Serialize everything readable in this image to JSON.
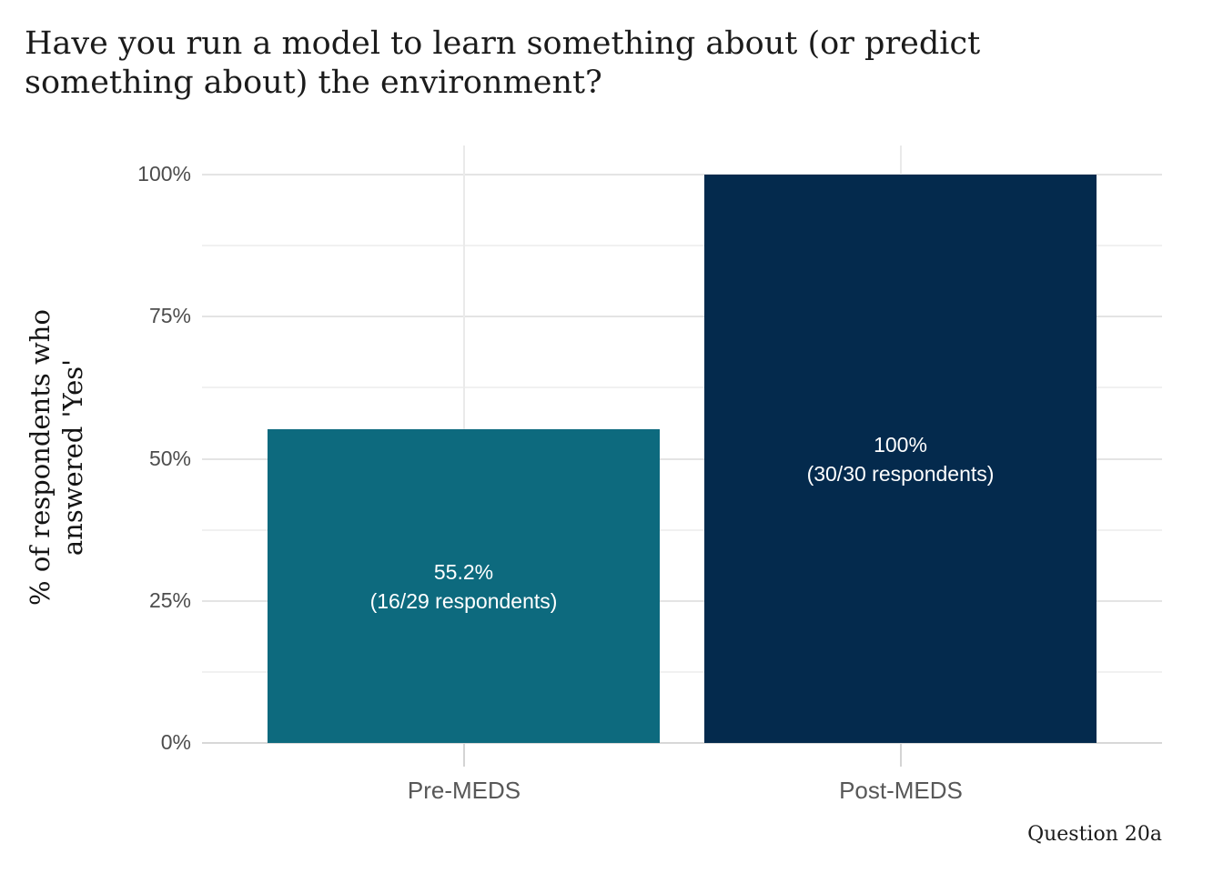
{
  "chart_data": {
    "type": "bar",
    "title": "Have you run a model to learn something about (or predict something about) the environment?",
    "title_lines": [
      "Have you run a model to learn something about (or predict",
      "something about) the environment?"
    ],
    "ylabel": "% of respondents who answered 'Yes'",
    "ylabel_lines": [
      "% of respondents who",
      "answered 'Yes'"
    ],
    "xlabel": "",
    "categories": [
      "Pre-MEDS",
      "Post-MEDS"
    ],
    "values": [
      55.2,
      100
    ],
    "respondents": [
      {
        "yes": 16,
        "total": 29
      },
      {
        "yes": 30,
        "total": 30
      }
    ],
    "bar_labels": [
      [
        "55.2%",
        "(16/29 respondents)"
      ],
      [
        "100%",
        "(30/30 respondents)"
      ]
    ],
    "bar_colors": [
      "#0D6A7E",
      "#042A4D"
    ],
    "ylim": [
      0,
      100
    ],
    "yticks": [
      0,
      25,
      50,
      75,
      100
    ],
    "ytick_labels": [
      "0%",
      "25%",
      "50%",
      "75%",
      "100%"
    ],
    "grid_minor_pcts": [
      12.5,
      37.5,
      62.5,
      87.5
    ],
    "grid": "horizontal major+minor, vertical lines at category centers",
    "legend": "none",
    "caption": "Question 20a",
    "colors": {
      "background": "#FFFFFF",
      "grid_major": "#E4E4E4",
      "grid_minor": "#F1F1F1",
      "axis_line": "#D8D8D8",
      "tick_mark": "#D4D4D4",
      "title_text": "#1B1B1B",
      "axis_tick_text": "#4D4D4D",
      "bar_label_text": "#FFFFFF"
    }
  }
}
